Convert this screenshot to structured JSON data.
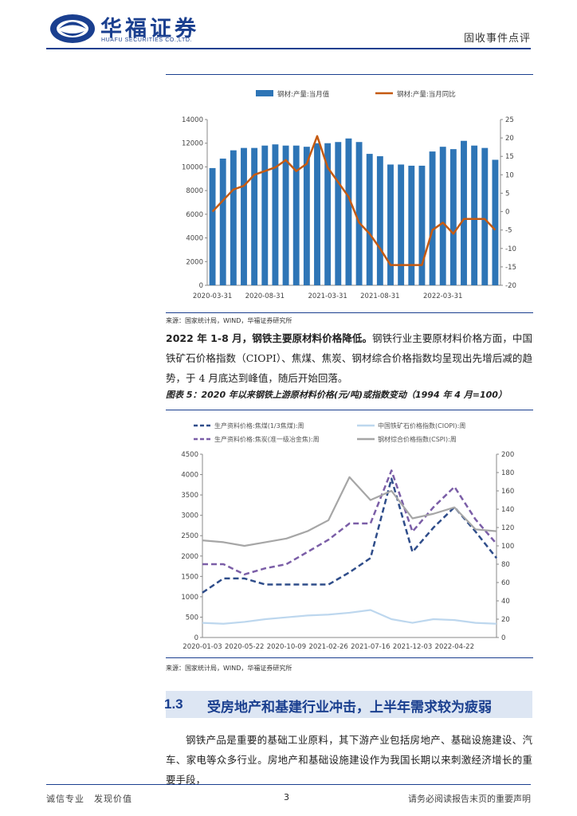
{
  "header": {
    "brand_cn": "华福证券",
    "brand_en": "HUAFU SECURITIES CO.,LTD.",
    "report_type": "固收事件点评"
  },
  "chart1": {
    "source": "来源：国家统计局，WIND，华福证券研究所",
    "chart_data": {
      "type": "bar",
      "title": "",
      "categories": [
        "2020-03-31",
        "2020-04-30",
        "2020-05-31",
        "2020-06-30",
        "2020-07-31",
        "2020-08-31",
        "2020-09-30",
        "2020-10-31",
        "2020-11-30",
        "2020-12-31",
        "2021-01-31",
        "2021-03-31",
        "2021-04-30",
        "2021-05-31",
        "2021-06-30",
        "2021-07-31",
        "2021-08-31",
        "2021-09-30",
        "2021-10-31",
        "2021-11-30",
        "2021-12-31",
        "2022-01-31",
        "2022-03-31",
        "2022-04-30",
        "2022-05-31",
        "2022-06-30",
        "2022-07-31",
        "2022-08-31"
      ],
      "tick_labels": [
        "2020-03-31",
        "2020-08-31",
        "2021-03-31",
        "2021-08-31",
        "2022-03-31"
      ],
      "tick_indices": [
        0,
        5,
        11,
        16,
        22
      ],
      "series": [
        {
          "name": "钢材:产量:当月值",
          "axis": "left",
          "kind": "bar",
          "color": "#2e75b6",
          "values": [
            9900,
            10700,
            11400,
            11600,
            11600,
            11800,
            11900,
            11800,
            11800,
            11700,
            12000,
            12000,
            12100,
            12400,
            12100,
            11100,
            10900,
            10200,
            10200,
            10100,
            10100,
            11300,
            11700,
            11500,
            12200,
            11800,
            11600,
            10600
          ]
        },
        {
          "name": "钢材:产量:当月同比",
          "axis": "right",
          "kind": "line",
          "color": "#c55a11",
          "values": [
            0,
            3,
            6,
            7,
            10,
            11,
            12,
            14,
            11,
            13,
            20.5,
            12,
            8,
            4,
            -3,
            -6,
            -10,
            -14.5,
            -14.5,
            -14.5,
            -14.5,
            -5,
            -3,
            -6,
            -2,
            -2,
            -2,
            -5
          ]
        }
      ],
      "ylim_left": [
        0,
        14000
      ],
      "yticks_left": [
        "0",
        "2000",
        "4000",
        "6000",
        "8000",
        "10000",
        "12000",
        "14000"
      ],
      "ylim_right": [
        -20,
        25
      ],
      "yticks_right": [
        "-20",
        "-15",
        "-10",
        "-5",
        "0",
        "5",
        "10",
        "15",
        "20",
        "25"
      ],
      "legend": "top",
      "grid": false
    }
  },
  "para1": {
    "bold": "2022 年 1-8 月，钢铁主要原材料价格降低。",
    "text": "钢铁行业主要原材料价格方面，中国铁矿石价格指数（CIOPI）、焦煤、焦炭、钢材综合价格指数均呈现出先增后减的趋势，于 4 月底达到峰值，随后开始回落。"
  },
  "chart2": {
    "title": "图表 5：2020 年以来钢铁上游原材料价格(元/吨)或指数变动（1994 年 4 月=100）",
    "source": "来源：国家统计局，WIND，华福证券研究所",
    "chart_data": {
      "type": "line",
      "title": "",
      "x": [
        "2020-01-03",
        "2020-03-13",
        "2020-05-22",
        "2020-07-31",
        "2020-10-09",
        "2020-12-18",
        "2021-02-26",
        "2021-05-07",
        "2021-07-16",
        "2021-09-24",
        "2021-12-03",
        "2022-02-11",
        "2022-04-22",
        "2022-07-01",
        "2022-08-26"
      ],
      "tick_labels": [
        "2020-01-03",
        "2020-05-22",
        "2020-10-09",
        "2021-02-26",
        "2021-07-16",
        "2021-12-03",
        "2022-04-22"
      ],
      "tick_indices": [
        0,
        2,
        4,
        6,
        8,
        10,
        12
      ],
      "series": [
        {
          "name": "生产资料价格:焦煤(1/3焦煤):周",
          "axis": "left",
          "color": "#2f4d8a",
          "dash": true,
          "values": [
            1100,
            1450,
            1450,
            1300,
            1300,
            1300,
            1300,
            1600,
            1950,
            3900,
            2100,
            2700,
            3200,
            2600,
            1950
          ]
        },
        {
          "name": "中国铁矿石价格指数(CIOPI):周",
          "axis": "right",
          "color": "#bdd7ee",
          "dash": false,
          "values": [
            16,
            15,
            17,
            20,
            22,
            24,
            25,
            27,
            30,
            20,
            16,
            20,
            19,
            16,
            15
          ]
        },
        {
          "name": "生产资料价格:焦炭(准一级冶金焦):周",
          "axis": "left",
          "color": "#7b5ea7",
          "dash": true,
          "values": [
            1800,
            1800,
            1550,
            1700,
            1800,
            2100,
            2400,
            2800,
            2800,
            4100,
            2600,
            3200,
            3700,
            2900,
            2300
          ]
        },
        {
          "name": "钢材综合价格指数(CSPI):周",
          "axis": "right",
          "color": "#a6a6a6",
          "dash": false,
          "values": [
            106,
            104,
            100,
            104,
            108,
            116,
            128,
            175,
            150,
            160,
            130,
            135,
            142,
            118,
            116
          ]
        }
      ],
      "ylim_left": [
        0,
        4500
      ],
      "yticks_left": [
        "0",
        "500",
        "1000",
        "1500",
        "2000",
        "2500",
        "3000",
        "3500",
        "4000",
        "4500"
      ],
      "ylim_right": [
        0,
        200
      ],
      "yticks_right": [
        "0",
        "20",
        "40",
        "60",
        "80",
        "100",
        "120",
        "140",
        "160",
        "180",
        "200"
      ],
      "legend": "top",
      "grid": false
    }
  },
  "section": {
    "number": "1.3",
    "title": "受房地产和基建行业冲击，上半年需求较为疲弱"
  },
  "para2": {
    "text": "钢铁产品是重要的基础工业原料，其下游产业包括房地产、基础设施建设、汽车、家电等众多行业。房地产和基础设施建设作为我国长期以来刺激经济增长的重要手段，"
  },
  "footer": {
    "left": "诚信专业　发现价值",
    "page": "3",
    "right": "请务必阅读报告末页的重要声明"
  },
  "colors": {
    "brand": "#1a3f8f",
    "bar": "#2e75b6",
    "line_orange": "#c55a11"
  }
}
